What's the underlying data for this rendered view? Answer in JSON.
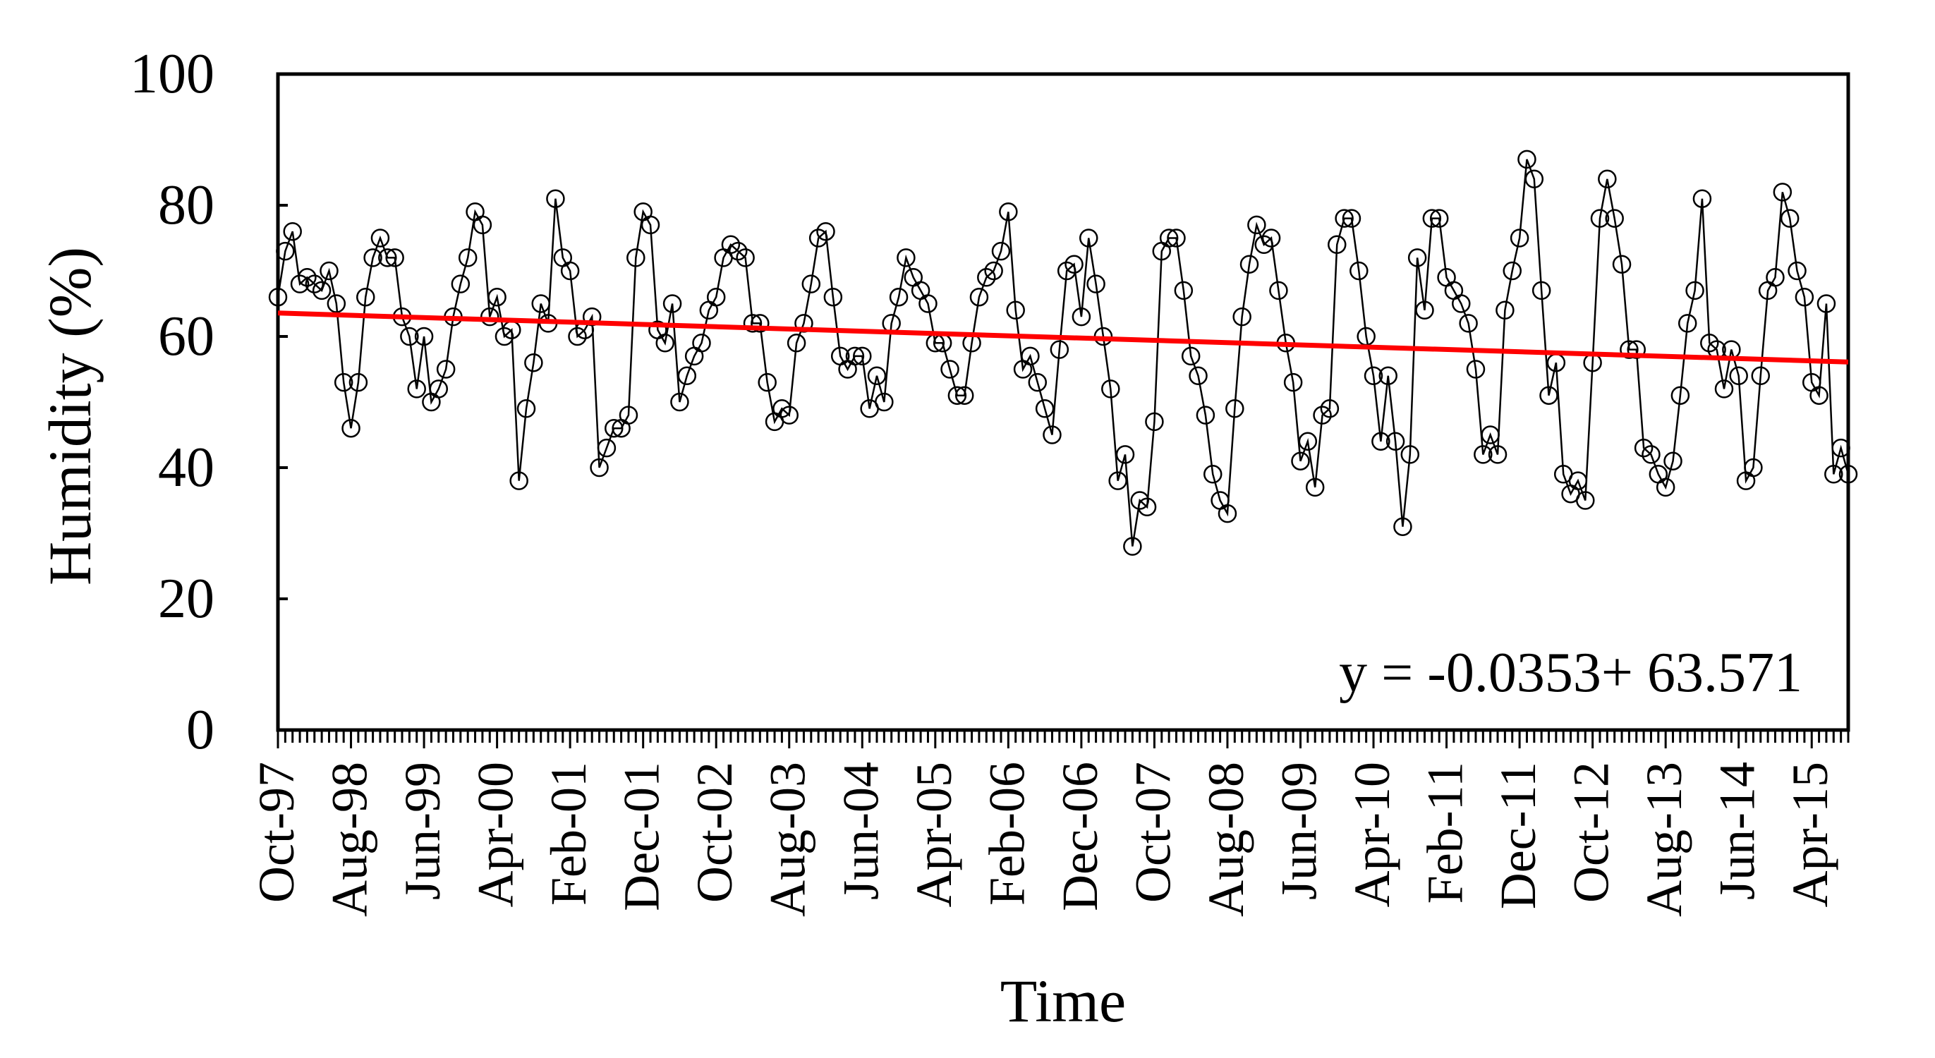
{
  "chart_data": {
    "type": "line",
    "title": "",
    "xlabel": "Time",
    "ylabel": "Humidity (%)",
    "ylim": [
      0,
      100
    ],
    "yticks": [
      0,
      20,
      40,
      60,
      80,
      100
    ],
    "grid": false,
    "legend": "none",
    "x_tick_labels": [
      "Oct-97",
      "Aug-98",
      "Jun-99",
      "Apr-00",
      "Feb-01",
      "Dec-01",
      "Oct-02",
      "Aug-03",
      "Jun-04",
      "Apr-05",
      "Feb-06",
      "Dec-06",
      "Oct-07",
      "Aug-08",
      "Jun-09",
      "Apr-10",
      "Feb-11",
      "Dec-11",
      "Oct-12",
      "Aug-13",
      "Jun-14",
      "Apr-15"
    ],
    "x_start": "Oct-97",
    "x_end": "Jul-15",
    "series": [
      {
        "marker": "open-circle",
        "color": "#000000",
        "values": [
          66,
          73,
          76,
          68,
          69,
          68,
          67,
          70,
          65,
          53,
          46,
          53,
          66,
          72,
          75,
          72,
          72,
          63,
          60,
          52,
          60,
          50,
          52,
          55,
          63,
          68,
          72,
          79,
          77,
          63,
          66,
          60,
          61,
          38,
          49,
          56,
          65,
          62,
          81,
          72,
          70,
          60,
          61,
          63,
          40,
          43,
          46,
          46,
          48,
          72,
          79,
          77,
          61,
          59,
          65,
          50,
          54,
          57,
          59,
          64,
          66,
          72,
          74,
          73,
          72,
          62,
          62,
          53,
          47,
          49,
          48,
          59,
          62,
          68,
          75,
          76,
          66,
          57,
          55,
          57,
          57,
          49,
          54,
          50,
          62,
          66,
          72,
          69,
          67,
          65,
          59,
          59,
          55,
          51,
          51,
          59,
          66,
          69,
          70,
          73,
          79,
          64,
          55,
          57,
          53,
          49,
          45,
          58,
          70,
          71,
          63,
          75,
          68,
          60,
          52,
          38,
          42,
          28,
          35,
          34,
          47,
          73,
          75,
          75,
          67,
          57,
          54,
          48,
          39,
          35,
          33,
          49,
          63,
          71,
          77,
          74,
          75,
          67,
          59,
          53,
          41,
          44,
          37,
          48,
          49,
          74,
          78,
          78,
          70,
          60,
          54,
          44,
          54,
          44,
          31,
          42,
          72,
          64,
          78,
          78,
          69,
          67,
          65,
          62,
          55,
          42,
          45,
          42,
          64,
          70,
          75,
          87,
          84,
          67,
          51,
          56,
          39,
          36,
          38,
          35,
          56,
          78,
          84,
          78,
          71,
          58,
          58,
          43,
          42,
          39,
          37,
          41,
          51,
          62,
          67,
          81,
          59,
          58,
          52,
          58,
          54,
          38,
          40,
          54,
          67,
          69,
          82,
          78,
          70,
          66,
          53,
          51,
          65,
          39,
          43,
          39
        ]
      }
    ],
    "trendline": {
      "color": "#ff0000",
      "start_value": 63.571,
      "end_value": 56.1
    },
    "equation": "y = -0.0353+ 63.571"
  }
}
